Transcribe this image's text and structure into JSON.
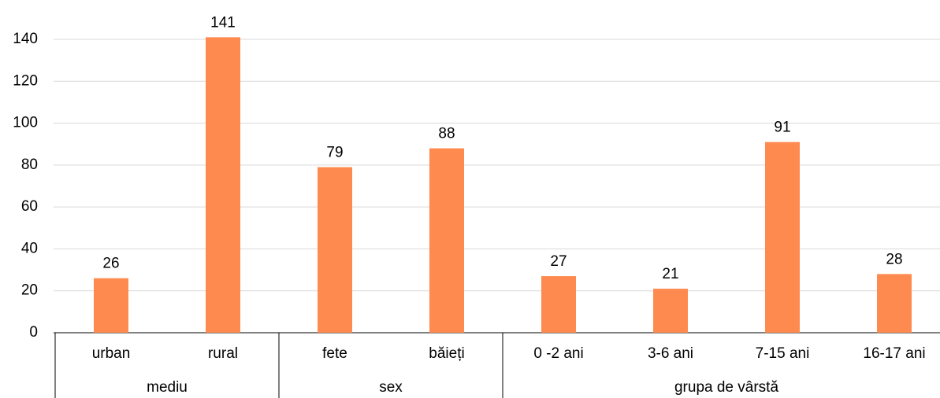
{
  "chart_data": {
    "type": "bar",
    "groups": [
      {
        "name": "mediu",
        "categories": [
          "urban",
          "rural"
        ]
      },
      {
        "name": "sex",
        "categories": [
          "fete",
          "băieți"
        ]
      },
      {
        "name": "grupa de vârstă",
        "categories": [
          "0 -2 ani",
          "3-6 ani",
          "7-15 ani",
          "16-17 ani"
        ]
      }
    ],
    "values": [
      26,
      141,
      79,
      88,
      27,
      21,
      91,
      28
    ],
    "color": "#ff8a50",
    "ylim": [
      0,
      140
    ],
    "yticks": [
      0,
      20,
      40,
      60,
      80,
      100,
      120,
      140
    ],
    "grid": true
  }
}
